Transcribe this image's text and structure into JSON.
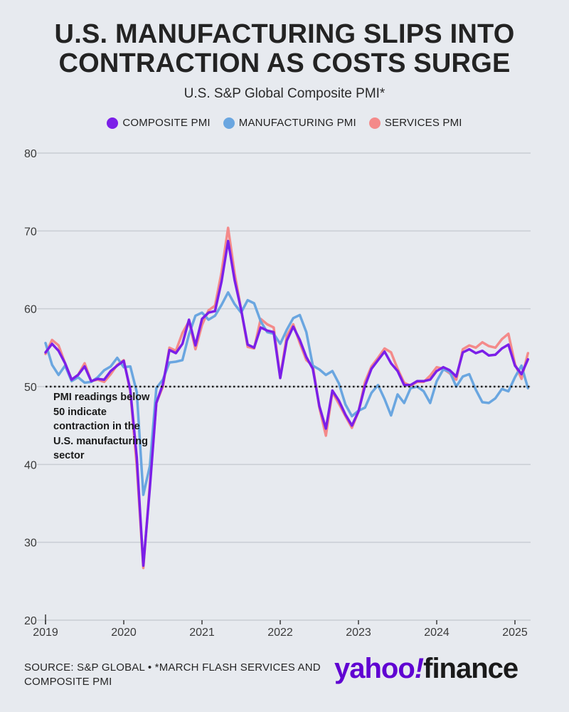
{
  "header": {
    "title_line1": "U.S. MANUFACTURING SLIPS INTO",
    "title_line2": "CONTRACTION AS COSTS SURGE",
    "subtitle": "U.S. S&P Global Composite PMI*"
  },
  "legend": [
    {
      "label": "COMPOSITE PMI",
      "color": "#7b1fe8"
    },
    {
      "label": "MANUFACTURING PMI",
      "color": "#6aa6e0"
    },
    {
      "label": "SERVICES PMI",
      "color": "#f48a8a"
    }
  ],
  "annotation": "PMI readings below 50 indicate contraction in the U.S. manufacturing sector",
  "footer": {
    "source": "SOURCE: S&P GLOBAL • *MARCH FLASH SERVICES AND COMPOSITE PMI",
    "logo_part1": "yahoo",
    "logo_bang": "!",
    "logo_part2": "finance"
  },
  "chart_data": {
    "type": "line",
    "title": "U.S. S&P Global Composite PMI*",
    "xlabel": "",
    "ylabel": "",
    "x_start": 2019.0,
    "x_step_months": 1,
    "xlim": [
      2019,
      2025.2
    ],
    "ylim": [
      20,
      80
    ],
    "yticks": [
      20,
      30,
      40,
      50,
      60,
      70,
      80
    ],
    "xticks": [
      {
        "value": 2019,
        "label": "2019"
      },
      {
        "value": 2020,
        "label": "2020"
      },
      {
        "value": 2021,
        "label": "2021"
      },
      {
        "value": 2022,
        "label": "2022"
      },
      {
        "value": 2023,
        "label": "2023"
      },
      {
        "value": 2024,
        "label": "2024"
      },
      {
        "value": 2025,
        "label": "2025"
      }
    ],
    "reference_line": 50,
    "grid": true,
    "series": [
      {
        "name": "SERVICES PMI",
        "color": "#f48a8a",
        "values": [
          54.2,
          56.0,
          55.3,
          53.0,
          50.9,
          51.5,
          53.0,
          50.7,
          50.9,
          50.6,
          51.6,
          52.8,
          53.4,
          49.4,
          39.8,
          26.7,
          37.5,
          47.9,
          50.0,
          55.0,
          54.6,
          56.9,
          58.4,
          54.8,
          57.9,
          59.8,
          60.4,
          64.7,
          70.4,
          64.6,
          59.9,
          55.1,
          54.9,
          58.7,
          58.0,
          57.6,
          51.2,
          56.5,
          58.0,
          55.6,
          53.4,
          52.7,
          47.3,
          43.7,
          49.3,
          47.8,
          46.2,
          44.7,
          46.8,
          50.6,
          52.6,
          53.7,
          54.9,
          54.4,
          52.3,
          50.5,
          50.1,
          50.6,
          50.6,
          51.4,
          52.5,
          52.3,
          51.7,
          50.9,
          54.8,
          55.3,
          55.0,
          55.7,
          55.2,
          55.0,
          56.1,
          56.8,
          52.9,
          51.0,
          54.3
        ]
      },
      {
        "name": "MANUFACTURING PMI",
        "color": "#6aa6e0",
        "values": [
          55.6,
          52.8,
          51.5,
          52.7,
          50.7,
          51.2,
          50.5,
          50.6,
          51.2,
          52.1,
          52.6,
          53.7,
          52.5,
          52.6,
          49.3,
          36.1,
          39.8,
          49.8,
          50.9,
          53.1,
          53.2,
          53.4,
          56.7,
          59.1,
          59.5,
          58.6,
          59.1,
          60.5,
          62.1,
          60.6,
          59.5,
          61.1,
          60.7,
          58.4,
          57.0,
          56.8,
          55.5,
          57.3,
          58.8,
          59.2,
          57.0,
          52.7,
          52.2,
          51.5,
          52.0,
          50.4,
          47.7,
          46.2,
          46.9,
          47.3,
          49.2,
          50.2,
          48.4,
          46.3,
          49.0,
          47.9,
          49.8,
          50.0,
          49.4,
          47.9,
          50.7,
          52.2,
          51.9,
          50.0,
          51.3,
          51.6,
          49.6,
          48.0,
          47.9,
          48.5,
          49.7,
          49.4,
          51.2,
          52.7,
          49.8
        ]
      },
      {
        "name": "COMPOSITE PMI",
        "color": "#7b1fe8",
        "values": [
          54.4,
          55.5,
          54.6,
          53.0,
          50.9,
          51.5,
          52.6,
          50.7,
          51.0,
          50.9,
          52.0,
          52.7,
          53.3,
          49.6,
          40.9,
          27.0,
          37.0,
          47.9,
          50.3,
          54.7,
          54.3,
          55.5,
          58.6,
          55.3,
          58.7,
          59.5,
          59.7,
          63.5,
          68.7,
          63.7,
          59.9,
          55.4,
          55.0,
          57.6,
          57.2,
          57.0,
          51.1,
          55.9,
          57.7,
          56.0,
          53.8,
          52.3,
          47.5,
          44.6,
          49.5,
          48.2,
          46.4,
          45.0,
          46.8,
          50.1,
          52.3,
          53.4,
          54.5,
          53.0,
          52.0,
          50.2,
          50.2,
          50.7,
          50.7,
          50.9,
          52.0,
          52.5,
          52.1,
          51.3,
          54.4,
          54.8,
          54.3,
          54.6,
          54.0,
          54.1,
          54.9,
          55.4,
          52.7,
          51.6,
          53.5
        ]
      }
    ],
    "source": "S&P Global"
  }
}
